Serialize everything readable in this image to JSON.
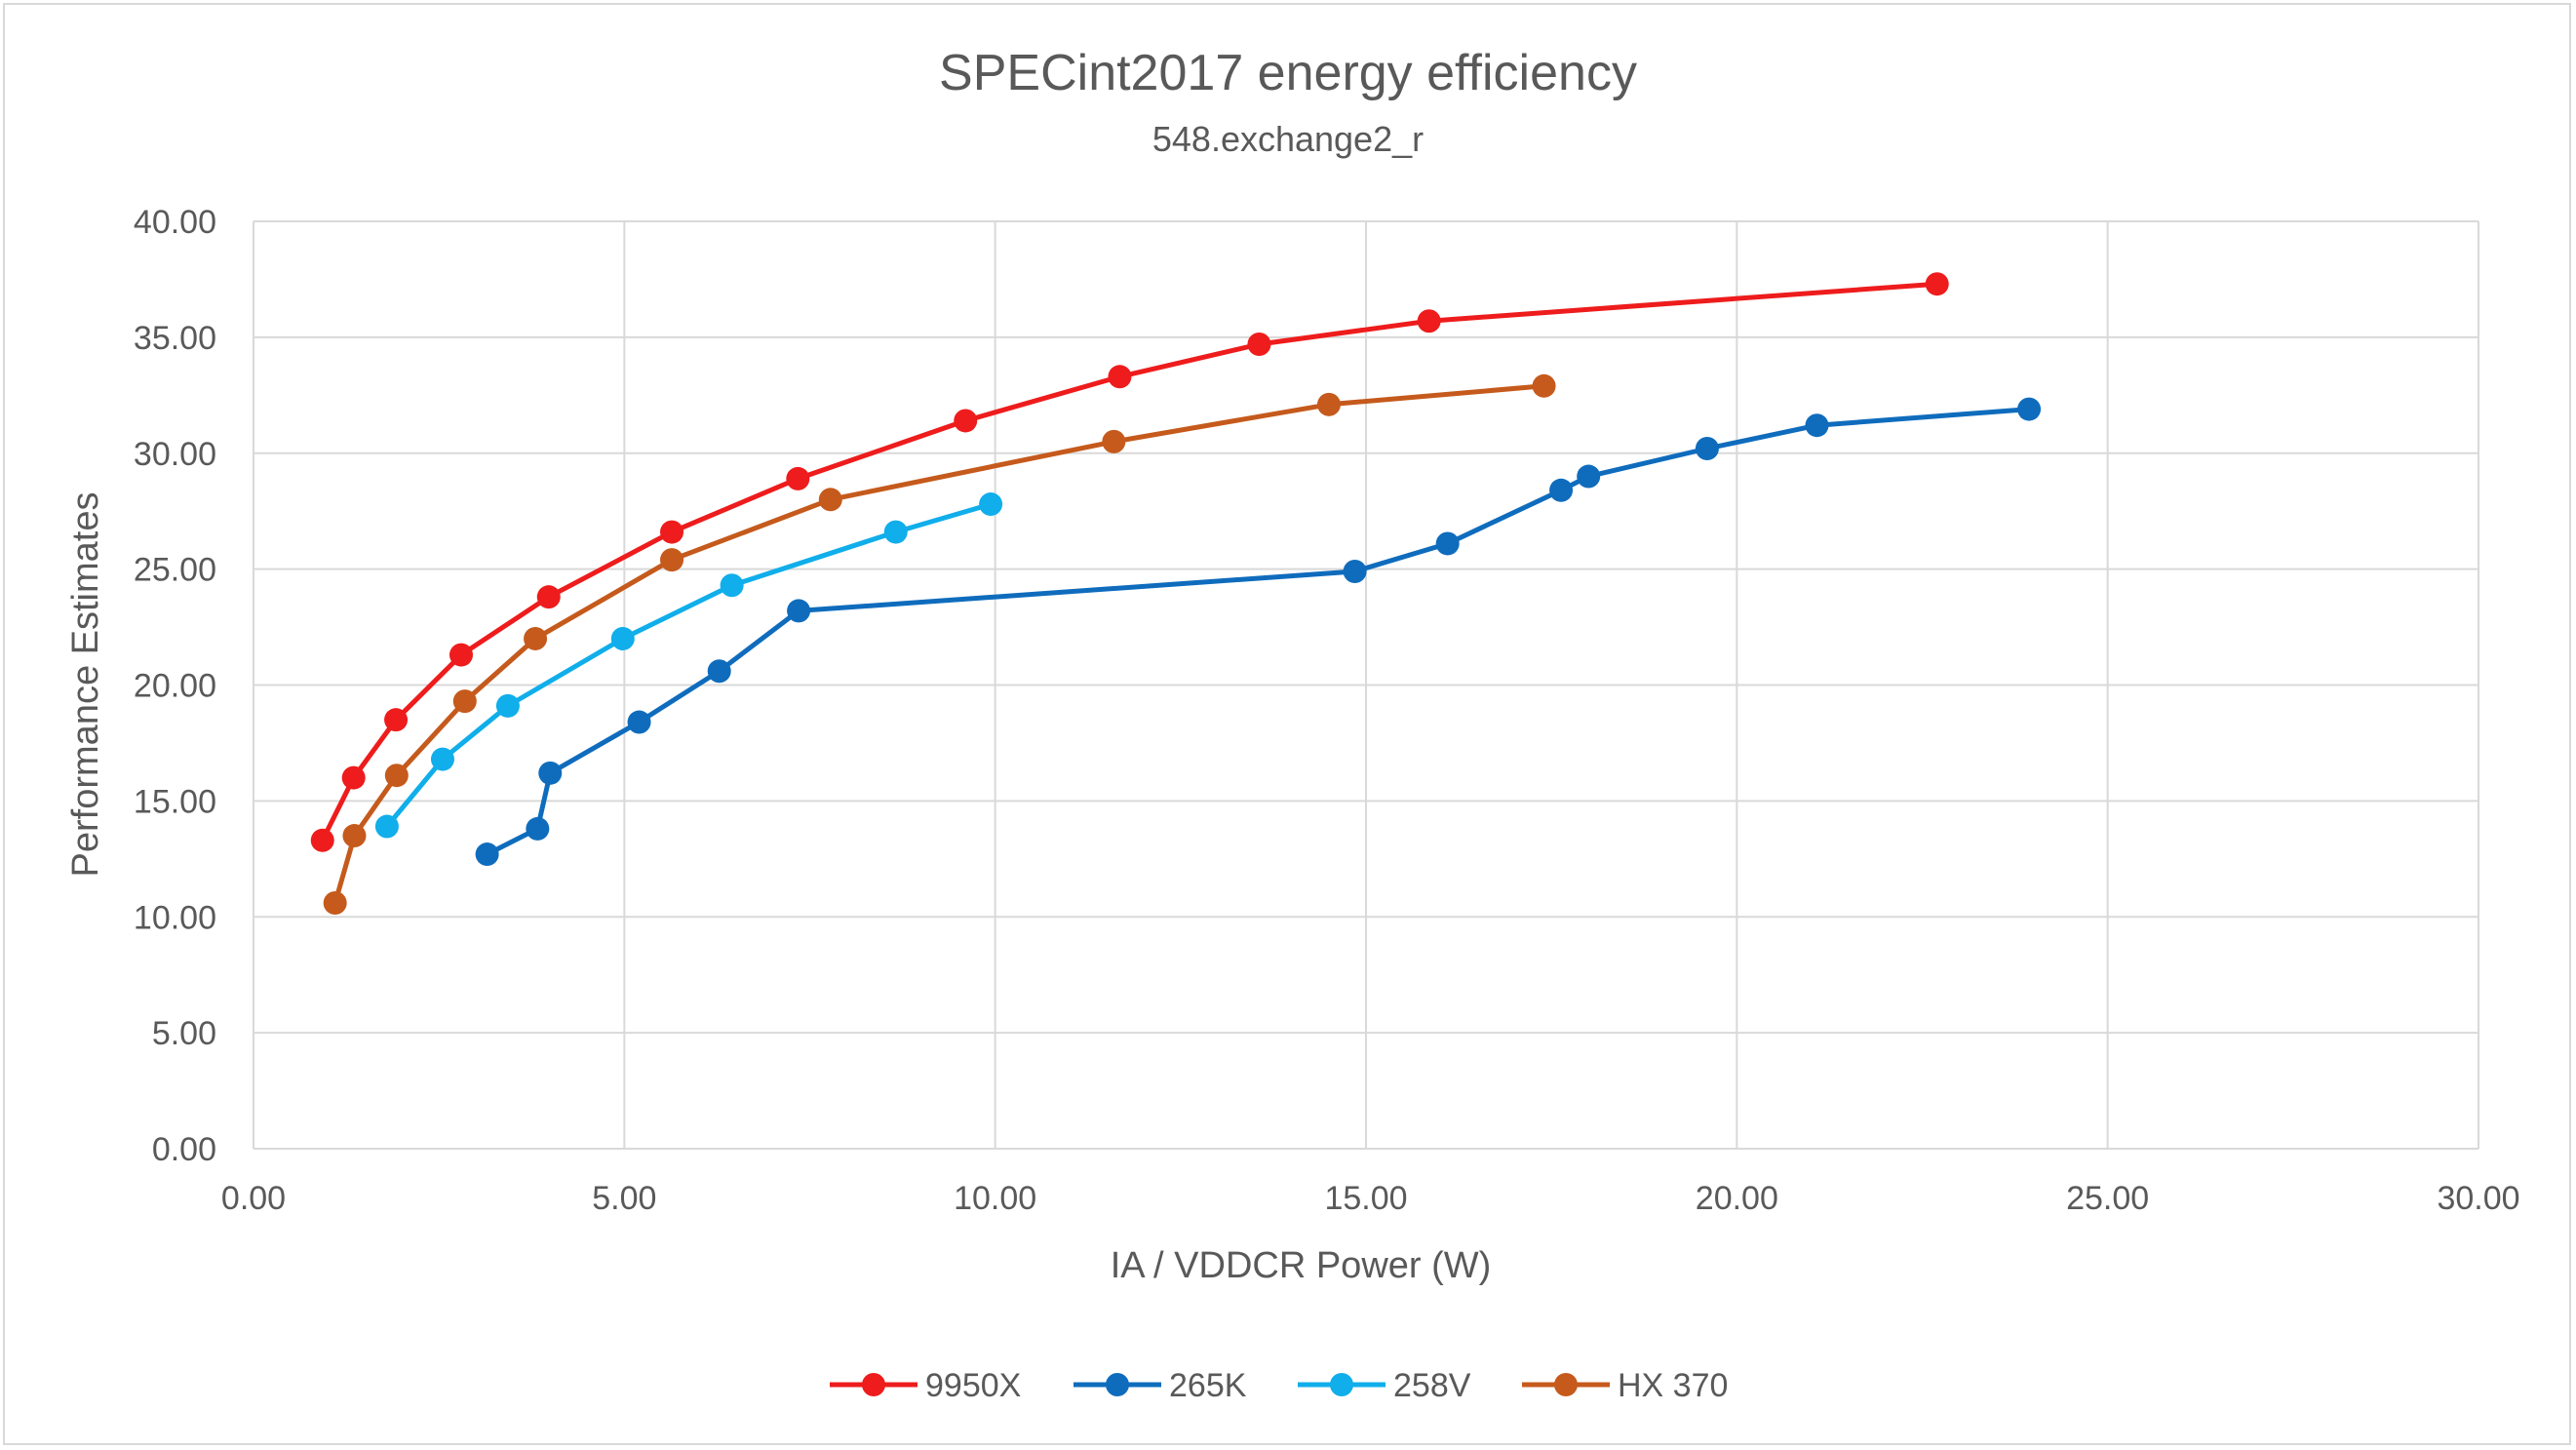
{
  "chart_data": {
    "type": "line",
    "title": "SPECint2017 energy efficiency",
    "subtitle": "548.exchange2_r",
    "xlabel": "IA / VDDCR Power (W)",
    "ylabel": "Performance Estimates",
    "xlim": [
      0,
      30
    ],
    "ylim": [
      0,
      40
    ],
    "xticks": [
      "0.00",
      "5.00",
      "10.00",
      "15.00",
      "20.00",
      "25.00",
      "30.00"
    ],
    "yticks": [
      "0.00",
      "5.00",
      "10.00",
      "15.00",
      "20.00",
      "25.00",
      "30.00",
      "35.00",
      "40.00"
    ],
    "grid": true,
    "legend_position": "bottom",
    "series": [
      {
        "name": "9950X",
        "color": "#ee1c1c",
        "points": [
          [
            0.93,
            13.3
          ],
          [
            1.35,
            16.0
          ],
          [
            1.92,
            18.5
          ],
          [
            2.8,
            21.3
          ],
          [
            3.98,
            23.8
          ],
          [
            5.64,
            26.6
          ],
          [
            7.34,
            28.9
          ],
          [
            9.6,
            31.4
          ],
          [
            11.68,
            33.3
          ],
          [
            13.56,
            34.7
          ],
          [
            15.85,
            35.7
          ],
          [
            22.7,
            37.3
          ]
        ]
      },
      {
        "name": "265K",
        "color": "#0f6cbd",
        "points": [
          [
            3.15,
            12.7
          ],
          [
            3.83,
            13.8
          ],
          [
            4.0,
            16.2
          ],
          [
            5.2,
            18.4
          ],
          [
            6.28,
            20.6
          ],
          [
            7.35,
            23.2
          ],
          [
            14.85,
            24.9
          ],
          [
            16.1,
            26.1
          ],
          [
            17.63,
            28.4
          ],
          [
            18.0,
            29.0
          ],
          [
            19.6,
            30.2
          ],
          [
            21.08,
            31.2
          ],
          [
            23.94,
            31.9
          ]
        ]
      },
      {
        "name": "258V",
        "color": "#10aeea",
        "points": [
          [
            1.8,
            13.9
          ],
          [
            2.55,
            16.8
          ],
          [
            3.43,
            19.1
          ],
          [
            4.98,
            22.0
          ],
          [
            6.45,
            24.3
          ],
          [
            8.66,
            26.6
          ],
          [
            9.94,
            27.8
          ]
        ]
      },
      {
        "name": "HX 370",
        "color": "#c55a1c",
        "points": [
          [
            1.1,
            10.6
          ],
          [
            1.36,
            13.5
          ],
          [
            1.93,
            16.1
          ],
          [
            2.85,
            19.3
          ],
          [
            3.8,
            22.0
          ],
          [
            5.64,
            25.4
          ],
          [
            7.78,
            28.0
          ],
          [
            11.6,
            30.5
          ],
          [
            14.5,
            32.1
          ],
          [
            17.4,
            32.9
          ]
        ]
      }
    ]
  }
}
